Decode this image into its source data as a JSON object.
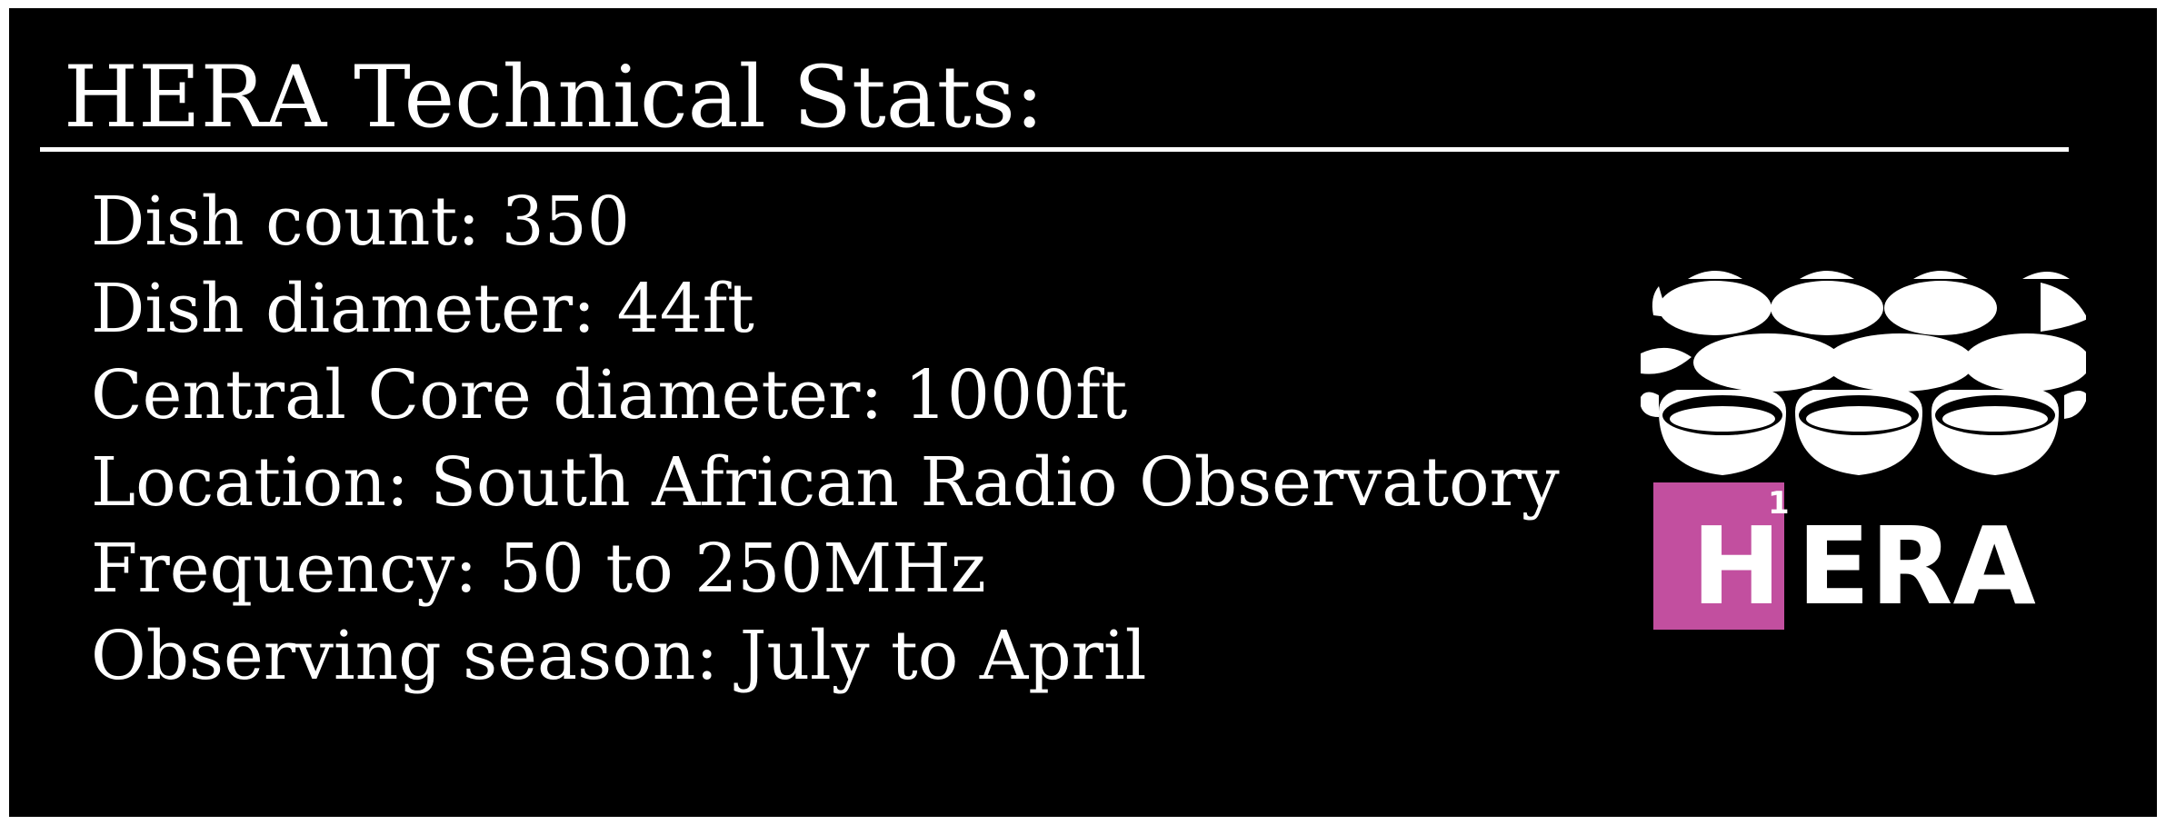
{
  "title": "HERA Technical Stats:",
  "stats": [
    "Dish count: 350",
    "Dish diameter: 44ft",
    "Central Core diameter: 1000ft",
    "Location: South African Radio Observatory",
    "Frequency: 50 to 250MHz",
    "Observing season: July to April"
  ],
  "logo": {
    "wordmark_box_letter": "H",
    "wordmark_superscript": "1",
    "wordmark_rest": "ERA",
    "accent_color": "#c24f9f",
    "foreground_color": "#ffffff",
    "background_color": "#000000"
  }
}
